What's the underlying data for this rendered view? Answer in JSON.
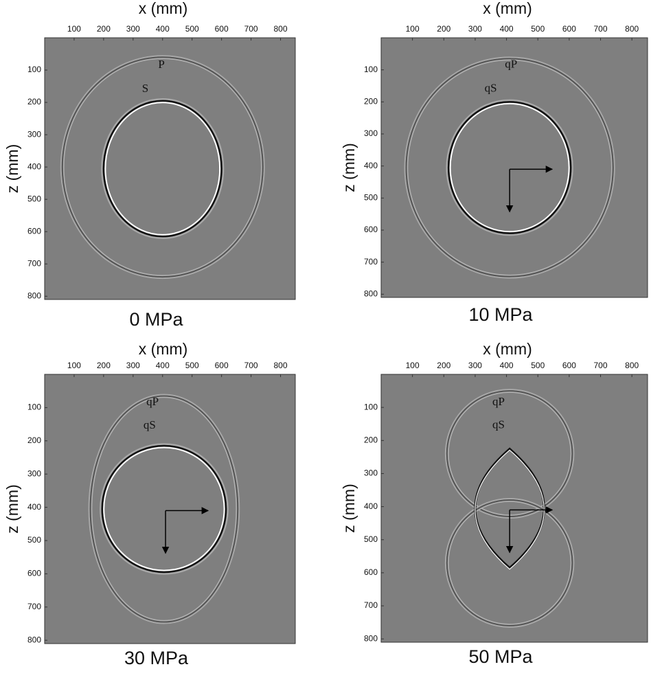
{
  "chart_data": [
    {
      "type": "image",
      "caption": "0 MPa",
      "x_label": "x (mm)",
      "y_label": "z (mm)",
      "xlim": [
        0,
        850
      ],
      "ylim": [
        0,
        810
      ],
      "xticks": [
        100,
        200,
        300,
        400,
        500,
        600,
        700,
        800
      ],
      "yticks": [
        100,
        200,
        300,
        400,
        500,
        600,
        700,
        800
      ],
      "annotations": [
        "P",
        "S"
      ]
    },
    {
      "type": "image",
      "caption": "10 MPa",
      "x_label": "x (mm)",
      "y_label": "z (mm)",
      "xlim": [
        0,
        850
      ],
      "ylim": [
        0,
        810
      ],
      "xticks": [
        100,
        200,
        300,
        400,
        500,
        600,
        700,
        800
      ],
      "yticks": [
        100,
        200,
        300,
        400,
        500,
        600,
        700,
        800
      ],
      "annotations": [
        "qP",
        "qS"
      ]
    },
    {
      "type": "image",
      "caption": "30 MPa",
      "x_label": "x (mm)",
      "y_label": "z (mm)",
      "xlim": [
        0,
        850
      ],
      "ylim": [
        0,
        810
      ],
      "xticks": [
        100,
        200,
        300,
        400,
        500,
        600,
        700,
        800
      ],
      "yticks": [
        100,
        200,
        300,
        400,
        500,
        600,
        700,
        800
      ],
      "annotations": [
        "qP",
        "qS"
      ]
    },
    {
      "type": "image",
      "caption": "50 MPa",
      "x_label": "x (mm)",
      "y_label": "z (mm)",
      "xlim": [
        0,
        850
      ],
      "ylim": [
        0,
        810
      ],
      "xticks": [
        100,
        200,
        300,
        400,
        500,
        600,
        700,
        800
      ],
      "yticks": [
        100,
        200,
        300,
        400,
        500,
        600,
        700,
        800
      ],
      "annotations": [
        "qP",
        "qS"
      ]
    }
  ]
}
